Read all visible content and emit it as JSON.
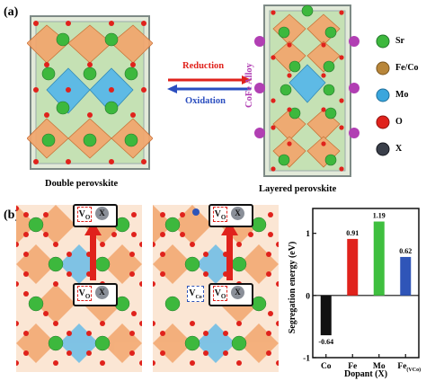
{
  "panel_a": {
    "label": "(a)",
    "left_caption": "Double perovskite",
    "right_caption": "Layered perovskite",
    "reduction_label": "Reduction",
    "oxidation_label": "Oxidation",
    "alloy_label": "CoFe Alloy",
    "legend": [
      {
        "label": "Sr",
        "color": "#3db83d"
      },
      {
        "label": "Fe/Co",
        "color": "#b8863a"
      },
      {
        "label": "Mo",
        "color": "#3aa6dd"
      },
      {
        "label": "O",
        "color": "#e0221c"
      },
      {
        "label": "X",
        "color": "#3a3f4a"
      }
    ],
    "colors": {
      "reduction": "#e0221c",
      "oxidation": "#2a4dbf",
      "alloy": "#b13fb3"
    }
  },
  "panel_b": {
    "label": "(b)",
    "vacancy_symbol": "V",
    "vacancy_sub": "O",
    "x_symbol": "X",
    "vco_sub": "Co"
  },
  "chart_data": {
    "type": "bar",
    "categories": [
      "Co",
      "Fe",
      "Mo",
      "Fe(VCo)"
    ],
    "tick_labels": [
      {
        "main": "Co",
        "sub": ""
      },
      {
        "main": "Fe",
        "sub": ""
      },
      {
        "main": "Mo",
        "sub": ""
      },
      {
        "main": "Fe",
        "sub": "(VCo)"
      }
    ],
    "values": [
      -0.64,
      0.91,
      1.19,
      0.62
    ],
    "value_labels": [
      "-0.64",
      "0.91",
      "1.19",
      "0.62"
    ],
    "colors": [
      "#111111",
      "#e0221c",
      "#3fbf3f",
      "#2f55b8"
    ],
    "xlabel": "Dopant (X)",
    "ylabel": "Segregation energy (eV)",
    "ylim": [
      -1.0,
      1.4
    ],
    "yticks": [
      -1,
      0,
      1
    ],
    "grid": false
  }
}
